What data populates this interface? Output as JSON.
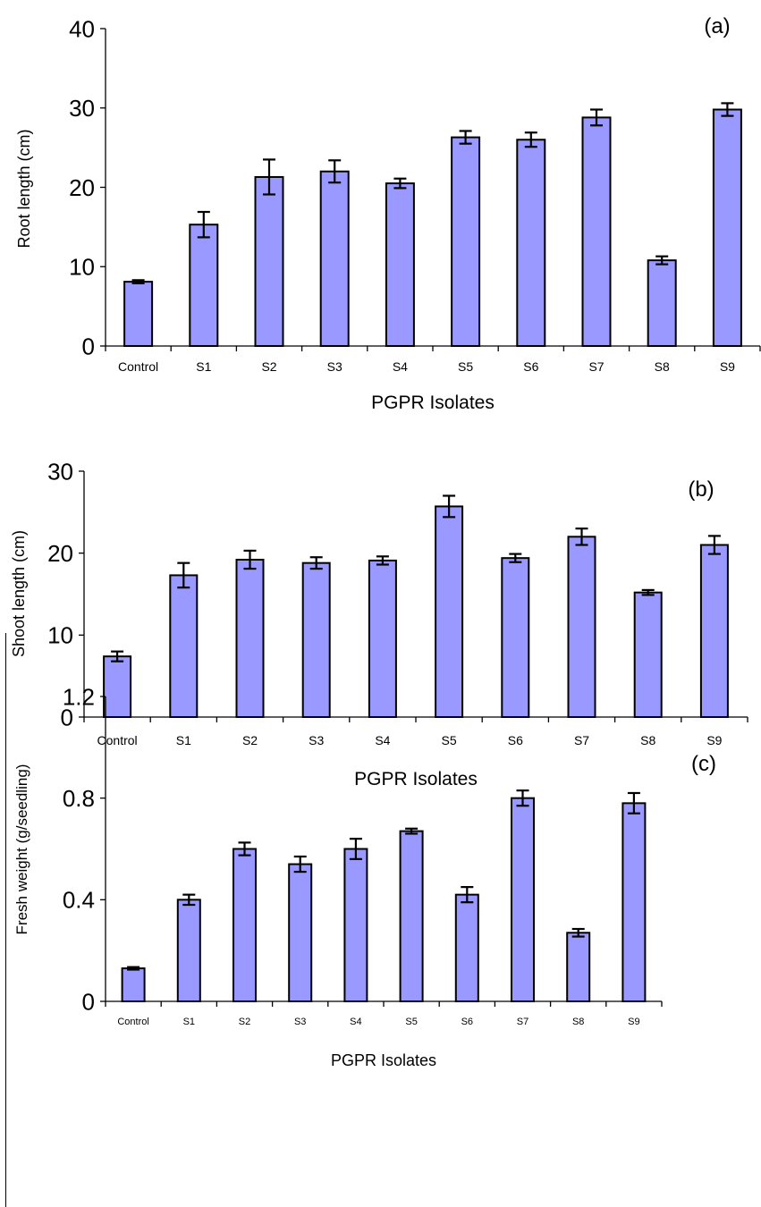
{
  "chart_data": [
    {
      "type": "bar",
      "panel_label": "(a)",
      "xlabel": "PGPR Isolates",
      "ylabel": "Root length (cm)",
      "ylim": [
        0,
        40
      ],
      "yticks": [
        "0",
        "10",
        "20",
        "30",
        "40"
      ],
      "categories": [
        "Control",
        "S1",
        "S2",
        "S3",
        "S4",
        "S5",
        "S6",
        "S7",
        "S8",
        "S9"
      ],
      "values": [
        8.1,
        15.3,
        21.3,
        22.0,
        20.5,
        26.3,
        26.0,
        28.8,
        10.8,
        29.8
      ],
      "errors": [
        0.2,
        1.6,
        2.2,
        1.4,
        0.6,
        0.8,
        0.9,
        1.0,
        0.5,
        0.8
      ]
    },
    {
      "type": "bar",
      "panel_label": "(b)",
      "xlabel": "PGPR Isolates",
      "ylabel": "Shoot length (cm)",
      "ylim": [
        0,
        30
      ],
      "yticks": [
        "0",
        "10",
        "20",
        "30"
      ],
      "categories": [
        "Control",
        "S1",
        "S2",
        "S3",
        "S4",
        "S5",
        "S6",
        "S7",
        "S8",
        "S9"
      ],
      "values": [
        7.4,
        17.3,
        19.2,
        18.8,
        19.1,
        25.7,
        19.4,
        22.0,
        15.2,
        21.0
      ],
      "errors": [
        0.6,
        1.5,
        1.1,
        0.7,
        0.5,
        1.3,
        0.5,
        1.0,
        0.3,
        1.1
      ]
    },
    {
      "type": "bar",
      "panel_label": "(c)",
      "xlabel": "PGPR Isolates",
      "ylabel": "Fresh weight (g/seedling)",
      "ylim": [
        0,
        1.2
      ],
      "yticks": [
        "0",
        "0.4",
        "0.8",
        "1.2"
      ],
      "categories": [
        "Control",
        "S1",
        "S2",
        "S3",
        "S4",
        "S5",
        "S6",
        "S7",
        "S8",
        "S9"
      ],
      "values": [
        0.13,
        0.4,
        0.6,
        0.54,
        0.6,
        0.67,
        0.42,
        0.8,
        0.27,
        0.78
      ],
      "errors": [
        0.005,
        0.02,
        0.025,
        0.03,
        0.04,
        0.01,
        0.03,
        0.03,
        0.015,
        0.04
      ]
    }
  ]
}
